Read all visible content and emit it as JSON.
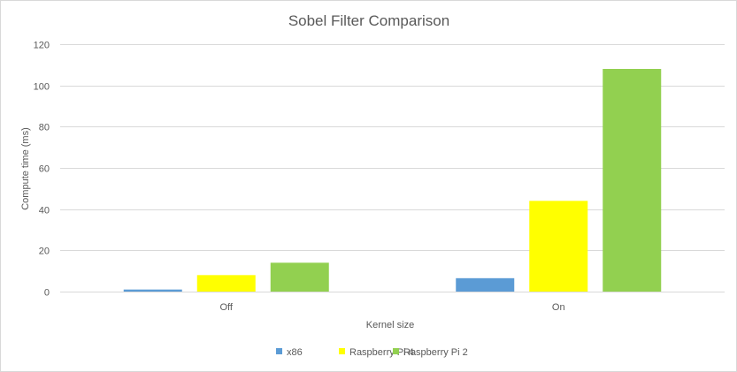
{
  "chart_data": {
    "type": "bar",
    "title": "Sobel Filter Comparison",
    "xlabel": "Kernel size",
    "ylabel": "Compute time (ms)",
    "categories": [
      "Off",
      "On"
    ],
    "ylim": [
      0,
      120
    ],
    "yticks": [
      0,
      20,
      40,
      60,
      80,
      100,
      120
    ],
    "grid": true,
    "legend": "bottom",
    "series": [
      {
        "name": "x86",
        "color": "#5b9bd5",
        "values": [
          1,
          6.5
        ]
      },
      {
        "name": "Raspberry Pi 4",
        "color": "#ffff00",
        "values": [
          8,
          44
        ]
      },
      {
        "name": "Raspberry Pi 2",
        "color": "#92d050",
        "values": [
          14,
          108
        ]
      }
    ]
  }
}
